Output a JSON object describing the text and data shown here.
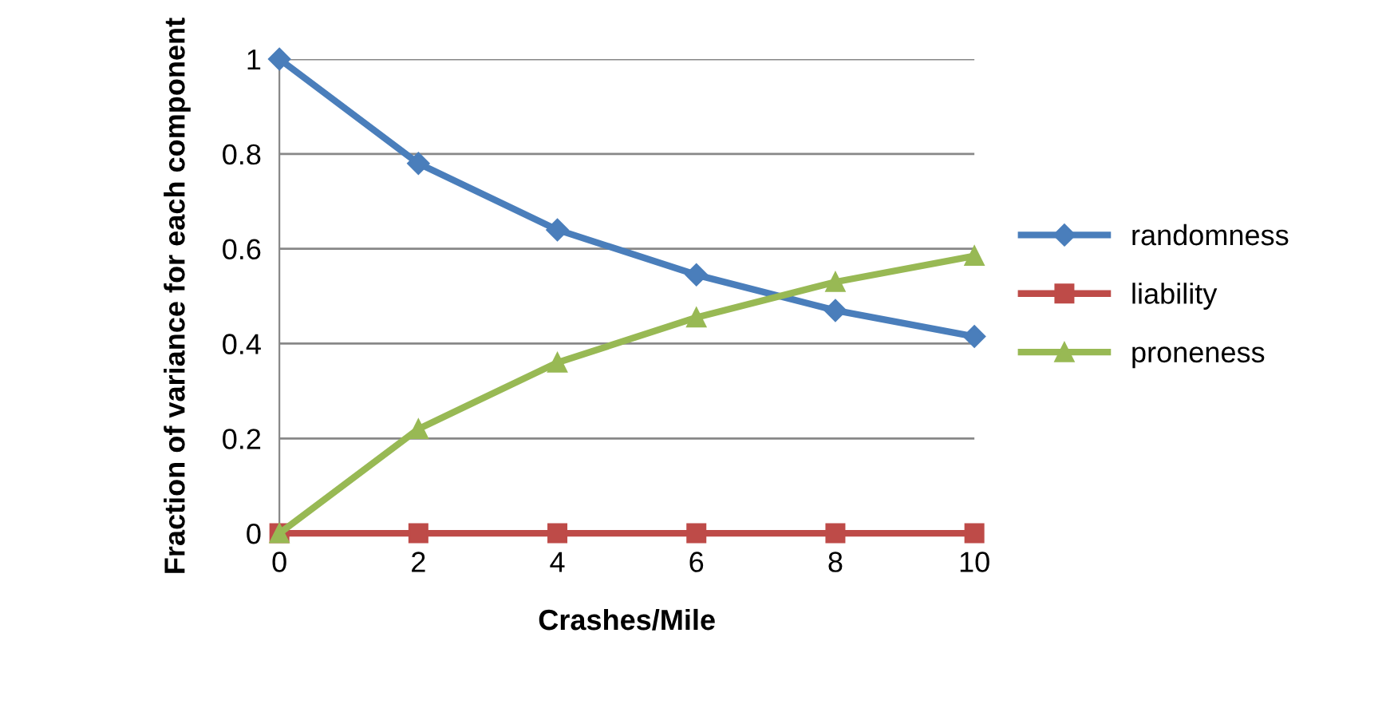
{
  "chart_data": {
    "type": "line",
    "xlabel": "Crashes/Mile",
    "ylabel": "Fraction of variance for each component",
    "x": [
      0,
      2,
      4,
      6,
      8,
      10
    ],
    "series": [
      {
        "name": "randomness",
        "color": "#4a7ebb",
        "marker": "diamond",
        "values": [
          1,
          0.78,
          0.64,
          0.545,
          0.47,
          0.415
        ]
      },
      {
        "name": "liability",
        "color": "#be4b48",
        "marker": "square",
        "values": [
          0,
          0,
          0,
          0,
          0,
          0
        ]
      },
      {
        "name": "proneness",
        "color": "#98b954",
        "marker": "triangle",
        "values": [
          0,
          0.22,
          0.36,
          0.455,
          0.53,
          0.585
        ]
      }
    ],
    "xlim": [
      0,
      10
    ],
    "xticks": [
      0,
      2,
      4,
      6,
      8,
      10
    ],
    "ylim": [
      0,
      1
    ],
    "yticks": [
      0,
      0.2,
      0.4,
      0.6,
      0.8,
      1
    ],
    "grid": "y",
    "legend": "right",
    "line_style": "solid"
  }
}
